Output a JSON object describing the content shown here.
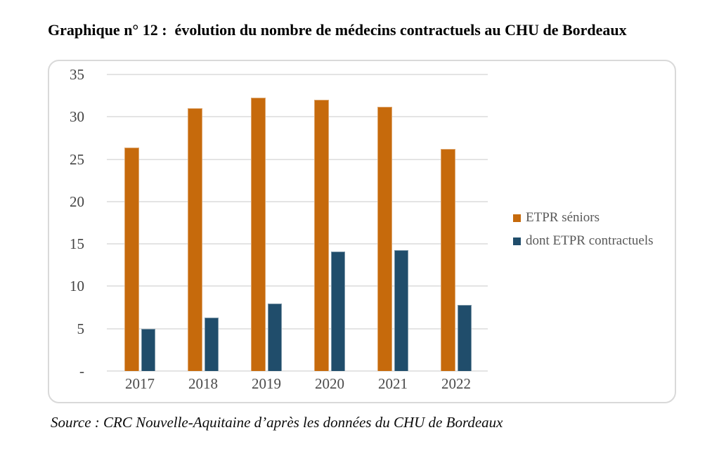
{
  "title": "Graphique n° 12 :  évolution du nombre de médecins contractuels au CHU de Bordeaux",
  "source": "Source : CRC Nouvelle-Aquitaine d’après les données du CHU de Bordeaux",
  "chart_data": {
    "type": "bar",
    "title": "Graphique n° 12 :  évolution du nombre de médecins contractuels au CHU de Bordeaux",
    "categories": [
      "2017",
      "2018",
      "2019",
      "2020",
      "2021",
      "2022"
    ],
    "series": [
      {
        "name": "ETPR séniors",
        "color": "#C66A0C",
        "values": [
          26.4,
          31.0,
          32.3,
          32.0,
          31.2,
          26.2
        ]
      },
      {
        "name": "dont ETPR contractuels",
        "color": "#204D6B",
        "values": [
          5.0,
          6.3,
          8.0,
          14.1,
          14.3,
          7.8
        ]
      }
    ],
    "xlabel": "",
    "ylabel": "",
    "ylim": [
      0,
      35
    ],
    "ytick_step": 5,
    "ytick_labels": [
      "-",
      "5",
      "10",
      "15",
      "20",
      "25",
      "30",
      "35"
    ],
    "grid": true,
    "legend_position": "right",
    "gridline_color": "#E4E4E4"
  }
}
